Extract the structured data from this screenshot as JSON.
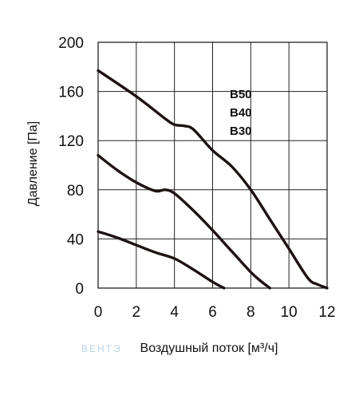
{
  "chart_data": {
    "type": "line",
    "title": "",
    "xlabel": "Воздушный поток [м³/ч]",
    "ylabel": "Давление [Па]",
    "xlim": [
      0,
      12
    ],
    "ylim": [
      0,
      200
    ],
    "x_ticks": [
      0,
      2,
      4,
      6,
      8,
      10,
      12
    ],
    "y_ticks": [
      0,
      40,
      80,
      120,
      160,
      200
    ],
    "grid": true,
    "legend_entries": [
      "B50",
      "B40",
      "B30"
    ],
    "legend_position": "top-right inside plot",
    "series": [
      {
        "name": "B50",
        "x": [
          0,
          2,
          3.5,
          4,
          4.5,
          5,
          6,
          7,
          8,
          9,
          10,
          11,
          11.5,
          12
        ],
        "y": [
          177,
          156,
          138,
          133,
          132,
          129,
          112,
          99,
          80,
          56,
          32,
          8,
          3,
          0
        ]
      },
      {
        "name": "B40",
        "x": [
          0,
          1,
          2,
          3,
          3.5,
          4,
          5,
          6,
          7,
          8,
          8.5,
          9
        ],
        "y": [
          108,
          96,
          86,
          79,
          80,
          77,
          63,
          47,
          30,
          13,
          6,
          0
        ]
      },
      {
        "name": "B30",
        "x": [
          0,
          1,
          2,
          3,
          4,
          5,
          6,
          6.6
        ],
        "y": [
          46,
          41,
          35,
          29,
          24,
          15,
          5,
          0
        ]
      }
    ],
    "line_color": "#1c1212"
  },
  "watermark_text": "ВЕНТЭ"
}
